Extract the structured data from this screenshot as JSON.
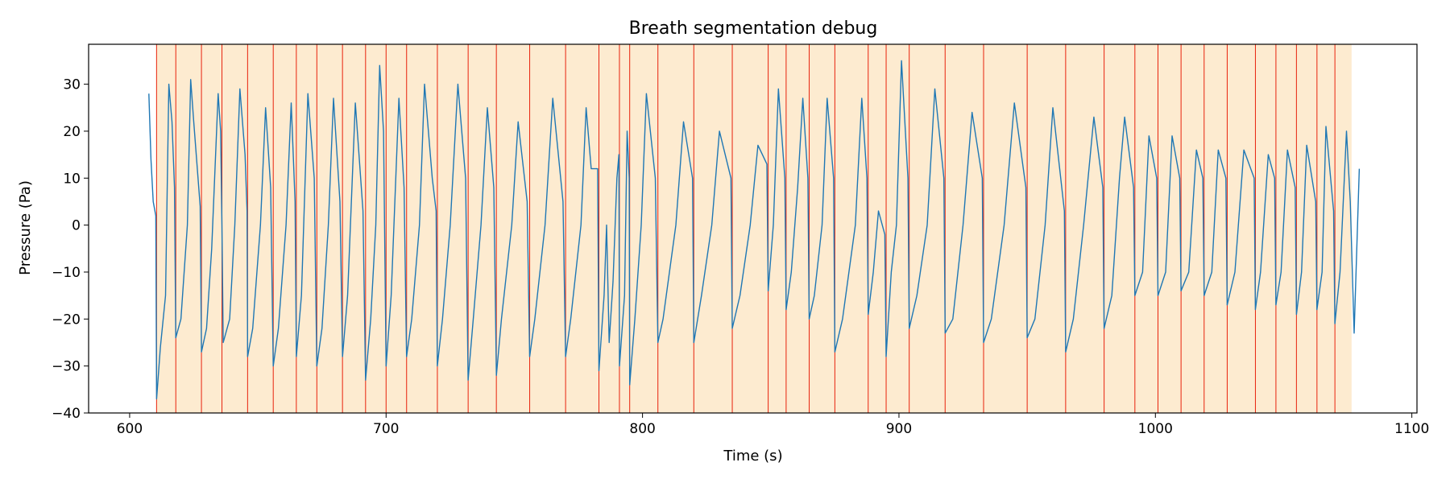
{
  "chart_data": {
    "type": "line",
    "title": "Breath segmentation debug",
    "xlabel": "Time (s)",
    "ylabel": "Pressure (Pa)",
    "xlim": [
      584,
      1102
    ],
    "ylim": [
      -40,
      38.5
    ],
    "xticks": [
      600,
      700,
      800,
      900,
      1000,
      1100
    ],
    "yticks": [
      -40,
      -30,
      -20,
      -10,
      0,
      10,
      20,
      30
    ],
    "grid": false,
    "colors": {
      "signal": "#1f77b4",
      "boundary": "#e8220c",
      "segment_fill": "#fdebd0"
    },
    "segment_span": [
      610.5,
      1076.5
    ],
    "breath_boundaries": [
      610.5,
      618,
      628,
      636,
      646,
      656,
      665,
      673,
      683,
      692,
      700,
      708,
      720,
      732,
      743,
      756,
      770,
      783,
      791,
      795,
      806,
      820,
      835,
      849,
      856,
      865,
      875,
      888,
      895,
      904,
      918,
      933,
      950,
      965,
      980,
      992,
      1001,
      1010,
      1019,
      1028,
      1039,
      1047,
      1055,
      1063,
      1070
    ],
    "series": [
      {
        "values": [
          [
            607.5,
            28
          ],
          [
            608.3,
            14
          ],
          [
            609.2,
            5
          ],
          [
            610.2,
            2
          ],
          [
            610.5,
            -37
          ],
          [
            612,
            -26
          ],
          [
            614,
            -15
          ],
          [
            615.3,
            30
          ],
          [
            616.5,
            22
          ],
          [
            617.5,
            8
          ],
          [
            618,
            -24
          ],
          [
            620,
            -20
          ],
          [
            622.5,
            0
          ],
          [
            623.8,
            31
          ],
          [
            625,
            22
          ],
          [
            627.5,
            4
          ],
          [
            628,
            -27
          ],
          [
            630,
            -22
          ],
          [
            632,
            -5
          ],
          [
            634.5,
            28
          ],
          [
            635.5,
            20
          ],
          [
            636,
            0
          ],
          [
            636.5,
            -25
          ],
          [
            639,
            -20
          ],
          [
            641,
            0
          ],
          [
            643,
            29
          ],
          [
            645,
            15
          ],
          [
            645.8,
            3
          ],
          [
            646,
            -28
          ],
          [
            648,
            -22
          ],
          [
            651,
            0
          ],
          [
            653,
            25
          ],
          [
            655,
            8
          ],
          [
            656,
            -30
          ],
          [
            658,
            -22
          ],
          [
            661,
            0
          ],
          [
            663,
            26
          ],
          [
            664.5,
            5
          ],
          [
            665,
            -28
          ],
          [
            667,
            -15
          ],
          [
            669.5,
            28
          ],
          [
            672,
            10
          ],
          [
            673,
            -30
          ],
          [
            675,
            -22
          ],
          [
            677.5,
            0
          ],
          [
            679.5,
            27
          ],
          [
            682,
            5
          ],
          [
            683,
            -28
          ],
          [
            685,
            -15
          ],
          [
            688,
            26
          ],
          [
            691,
            3
          ],
          [
            692,
            -33
          ],
          [
            694,
            -20
          ],
          [
            696,
            0
          ],
          [
            697.5,
            34
          ],
          [
            699,
            20
          ],
          [
            700,
            -30
          ],
          [
            702,
            -15
          ],
          [
            705,
            27
          ],
          [
            707,
            8
          ],
          [
            708,
            -28
          ],
          [
            710,
            -20
          ],
          [
            713,
            0
          ],
          [
            715,
            30
          ],
          [
            718,
            10
          ],
          [
            719.5,
            3
          ],
          [
            720,
            -30
          ],
          [
            722,
            -20
          ],
          [
            725,
            0
          ],
          [
            728,
            30
          ],
          [
            731,
            10
          ],
          [
            732,
            -33
          ],
          [
            734,
            -20
          ],
          [
            737,
            0
          ],
          [
            739.5,
            25
          ],
          [
            742,
            8
          ],
          [
            743,
            -32
          ],
          [
            745,
            -20
          ],
          [
            749,
            0
          ],
          [
            751.5,
            22
          ],
          [
            755,
            5
          ],
          [
            756,
            -28
          ],
          [
            758,
            -20
          ],
          [
            762,
            0
          ],
          [
            765,
            27
          ],
          [
            769,
            5
          ],
          [
            770,
            -28
          ],
          [
            772,
            -20
          ],
          [
            776,
            0
          ],
          [
            778,
            25
          ],
          [
            780,
            12
          ],
          [
            782.5,
            12
          ],
          [
            783,
            -31
          ],
          [
            785,
            -15
          ],
          [
            786,
            0
          ],
          [
            787,
            -25
          ],
          [
            788.5,
            -12
          ],
          [
            790,
            10
          ],
          [
            790.8,
            15
          ],
          [
            791,
            -30
          ],
          [
            793,
            -15
          ],
          [
            794,
            20
          ],
          [
            794.8,
            10
          ],
          [
            795,
            -34
          ],
          [
            797,
            -20
          ],
          [
            799.5,
            0
          ],
          [
            801.5,
            28
          ],
          [
            805,
            10
          ],
          [
            806,
            -25
          ],
          [
            808,
            -20
          ],
          [
            813,
            0
          ],
          [
            816,
            22
          ],
          [
            819.5,
            10
          ],
          [
            820,
            -25
          ],
          [
            823,
            -15
          ],
          [
            827,
            0
          ],
          [
            830,
            20
          ],
          [
            834.5,
            10
          ],
          [
            835,
            -22
          ],
          [
            838,
            -15
          ],
          [
            842,
            0
          ],
          [
            845,
            17
          ],
          [
            848.5,
            13
          ],
          [
            849,
            -14
          ],
          [
            851,
            0
          ],
          [
            853,
            29
          ],
          [
            855.5,
            10
          ],
          [
            856,
            -18
          ],
          [
            858,
            -10
          ],
          [
            860.5,
            8
          ],
          [
            862.5,
            27
          ],
          [
            864.5,
            10
          ],
          [
            865,
            -20
          ],
          [
            867,
            -15
          ],
          [
            870,
            0
          ],
          [
            872,
            27
          ],
          [
            874.5,
            10
          ],
          [
            875,
            -27
          ],
          [
            878,
            -20
          ],
          [
            883,
            0
          ],
          [
            885.5,
            27
          ],
          [
            887.5,
            10
          ],
          [
            888,
            -19
          ],
          [
            890,
            -10
          ],
          [
            892,
            3
          ],
          [
            894.5,
            -2
          ],
          [
            895,
            -28
          ],
          [
            897,
            -10
          ],
          [
            899,
            0
          ],
          [
            901,
            35
          ],
          [
            903.5,
            10
          ],
          [
            904,
            -22
          ],
          [
            907,
            -15
          ],
          [
            911,
            0
          ],
          [
            914,
            29
          ],
          [
            917.5,
            10
          ],
          [
            918,
            -23
          ],
          [
            921,
            -20
          ],
          [
            925,
            0
          ],
          [
            928.5,
            24
          ],
          [
            932.5,
            10
          ],
          [
            933,
            -25
          ],
          [
            936,
            -20
          ],
          [
            941,
            0
          ],
          [
            945,
            26
          ],
          [
            949.5,
            8
          ],
          [
            950,
            -24
          ],
          [
            953,
            -20
          ],
          [
            957,
            0
          ],
          [
            960,
            25
          ],
          [
            964.5,
            3
          ],
          [
            965,
            -27
          ],
          [
            968,
            -20
          ],
          [
            972,
            0
          ],
          [
            976,
            23
          ],
          [
            979.5,
            8
          ],
          [
            980,
            -22
          ],
          [
            983,
            -15
          ],
          [
            986,
            10
          ],
          [
            988,
            23
          ],
          [
            991.5,
            8
          ],
          [
            992,
            -15
          ],
          [
            995,
            -10
          ],
          [
            997.5,
            19
          ],
          [
            1000.5,
            10
          ],
          [
            1001,
            -15
          ],
          [
            1004,
            -10
          ],
          [
            1006.5,
            19
          ],
          [
            1009.5,
            10
          ],
          [
            1010,
            -14
          ],
          [
            1013,
            -10
          ],
          [
            1016,
            16
          ],
          [
            1018.5,
            10
          ],
          [
            1019,
            -15
          ],
          [
            1022,
            -10
          ],
          [
            1024.5,
            16
          ],
          [
            1027.5,
            10
          ],
          [
            1028,
            -17
          ],
          [
            1031,
            -10
          ],
          [
            1034.5,
            16
          ],
          [
            1038.5,
            10
          ],
          [
            1039,
            -18
          ],
          [
            1041,
            -10
          ],
          [
            1044,
            15
          ],
          [
            1046.5,
            10
          ],
          [
            1047,
            -17
          ],
          [
            1049,
            -10
          ],
          [
            1051.5,
            16
          ],
          [
            1054.5,
            8
          ],
          [
            1055,
            -19
          ],
          [
            1057,
            -10
          ],
          [
            1059,
            17
          ],
          [
            1062.5,
            5
          ],
          [
            1063,
            -18
          ],
          [
            1065,
            -10
          ],
          [
            1066.5,
            21
          ],
          [
            1069.5,
            3
          ],
          [
            1070,
            -21
          ],
          [
            1072,
            -10
          ],
          [
            1074.5,
            20
          ],
          [
            1076,
            5
          ],
          [
            1077.5,
            -23
          ],
          [
            1079.5,
            12
          ]
        ]
      }
    ]
  }
}
